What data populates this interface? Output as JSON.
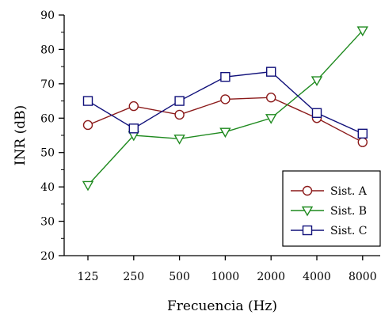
{
  "chart_data": {
    "type": "line",
    "title": "",
    "xlabel": "Frecuencia (Hz)",
    "ylabel": "INR (dB)",
    "categories": [
      "125",
      "250",
      "500",
      "1000",
      "2000",
      "4000",
      "8000"
    ],
    "ylim": [
      20,
      90
    ],
    "yticks": [
      20,
      30,
      40,
      50,
      60,
      70,
      80,
      90
    ],
    "grid": false,
    "legend_position": "bottom-right",
    "series": [
      {
        "name": "Sist. A",
        "color": "#8b1a1a",
        "marker": "circle",
        "values": [
          58,
          63.5,
          61,
          65.5,
          66,
          60,
          53
        ]
      },
      {
        "name": "Sist. B",
        "color": "#1f8a1f",
        "marker": "triangle-down",
        "values": [
          40.5,
          55,
          54,
          56,
          60,
          71,
          85.5
        ]
      },
      {
        "name": "Sist. C",
        "color": "#10107a",
        "marker": "square",
        "values": [
          65,
          57,
          65,
          72,
          73.5,
          61.5,
          55.5
        ]
      }
    ]
  }
}
